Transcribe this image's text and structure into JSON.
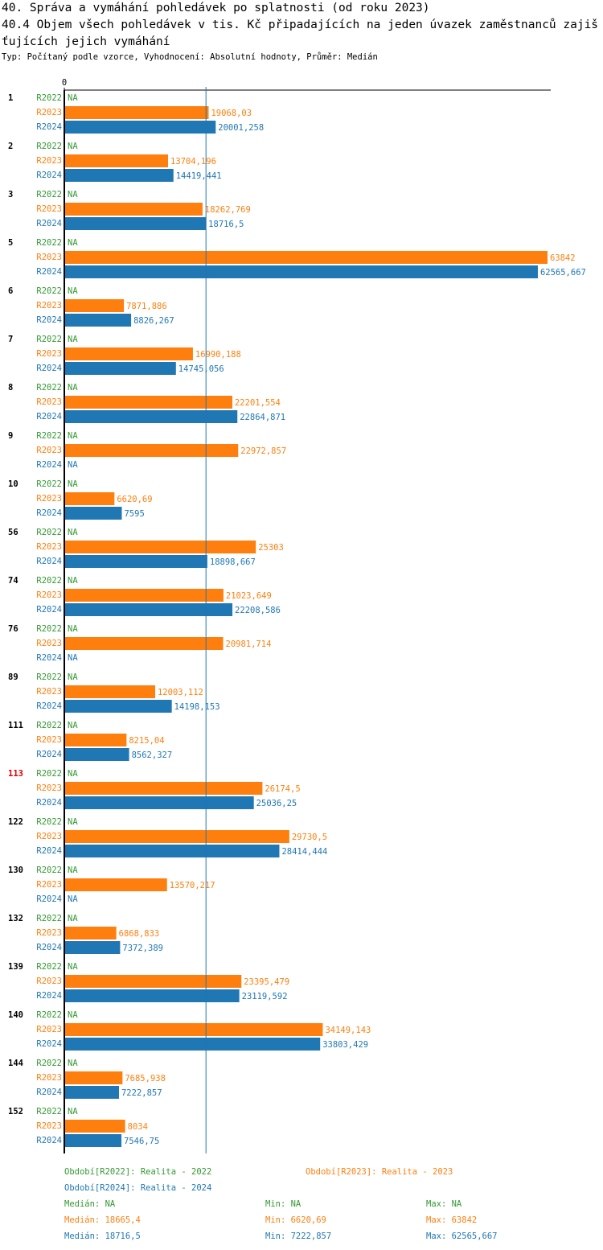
{
  "chart_data": {
    "type": "hbar",
    "title": "40. Správa a vymáhání pohledávek po splatnosti (od roku 2023)",
    "subtitle": "40.4 Objem všech pohledávek v tis. Kč připadajících na jeden úvazek zaměstnanců zajišťujících jejich vymáhání",
    "description": "Typ: Počítaný podle vzorce, Vyhodnocení: Absolutní hodnoty, Průměr: Medián",
    "categories": [
      "1",
      "2",
      "3",
      "5",
      "6",
      "7",
      "8",
      "9",
      "10",
      "56",
      "74",
      "76",
      "89",
      "111",
      "113",
      "122",
      "130",
      "132",
      "139",
      "140",
      "144",
      "152"
    ],
    "highlight": {
      "category": "113",
      "color": "#dd0000"
    },
    "xlim": [
      0,
      64270
    ],
    "xticks": [
      0
    ],
    "series": [
      {
        "name": "R2022",
        "color": "#339933",
        "label": "Období[R2022]: Realita - 2022",
        "values": [
          null,
          null,
          null,
          null,
          null,
          null,
          null,
          null,
          null,
          null,
          null,
          null,
          null,
          null,
          null,
          null,
          null,
          null,
          null,
          null,
          null,
          null
        ],
        "value_labels": [
          "NA",
          "NA",
          "NA",
          "NA",
          "NA",
          "NA",
          "NA",
          "NA",
          "NA",
          "NA",
          "NA",
          "NA",
          "NA",
          "NA",
          "NA",
          "NA",
          "NA",
          "NA",
          "NA",
          "NA",
          "NA",
          "NA"
        ],
        "median": {
          "value": null,
          "label": "Medián: NA"
        },
        "min": {
          "value": null,
          "label": "Min: NA"
        },
        "max": {
          "value": null,
          "label": "Max: NA"
        }
      },
      {
        "name": "R2023",
        "color": "#ff7f0e",
        "label": "Období[R2023]: Realita - 2023",
        "values": [
          19068.03,
          13704.196,
          18262.769,
          63842,
          7871.886,
          16990.188,
          22201.554,
          22972.857,
          6620.69,
          25303,
          21023.649,
          20981.714,
          12003.112,
          8215.04,
          26174.5,
          29730.5,
          13570.217,
          6868.833,
          23395.479,
          34149.143,
          7685.938,
          8034
        ],
        "value_labels": [
          "19068,03",
          "13704,196",
          "18262,769",
          "63842",
          "7871,886",
          "16990,188",
          "22201,554",
          "22972,857",
          "6620,69",
          "25303",
          "21023,649",
          "20981,714",
          "12003,112",
          "8215,04",
          "26174,5",
          "29730,5",
          "13570,217",
          "6868,833",
          "23395,479",
          "34149,143",
          "7685,938",
          "8034"
        ],
        "median": {
          "value": 18665.4,
          "label": "Medián: 18665,4"
        },
        "min": {
          "value": 6620.69,
          "label": "Min: 6620,69"
        },
        "max": {
          "value": 63842,
          "label": "Max: 63842"
        }
      },
      {
        "name": "R2024",
        "color": "#1f77b4",
        "label": "Období[R2024]: Realita - 2024",
        "values": [
          20001.258,
          14419.441,
          18716.5,
          62565.667,
          8826.267,
          14745.056,
          22864.871,
          null,
          7595,
          18898.667,
          22208.586,
          null,
          14198.153,
          8562.327,
          25036.25,
          28414.444,
          null,
          7372.389,
          23119.592,
          33803.429,
          7222.857,
          7546.75
        ],
        "value_labels": [
          "20001,258",
          "14419,441",
          "18716,5",
          "62565,667",
          "8826,267",
          "14745,056",
          "22864,871",
          "NA",
          "7595",
          "18898,667",
          "22208,586",
          "NA",
          "14198,153",
          "8562,327",
          "25036,25",
          "28414,444",
          "NA",
          "7372,389",
          "23119,592",
          "33803,429",
          "7222,857",
          "7546,75"
        ],
        "median": {
          "value": 18716.5,
          "label": "Medián: 18716,5"
        },
        "min": {
          "value": 7222.857,
          "label": "Min: 7222,857"
        },
        "max": {
          "value": 62565.667,
          "label": "Max: 62565,667"
        }
      }
    ],
    "median_line_series": 2
  }
}
